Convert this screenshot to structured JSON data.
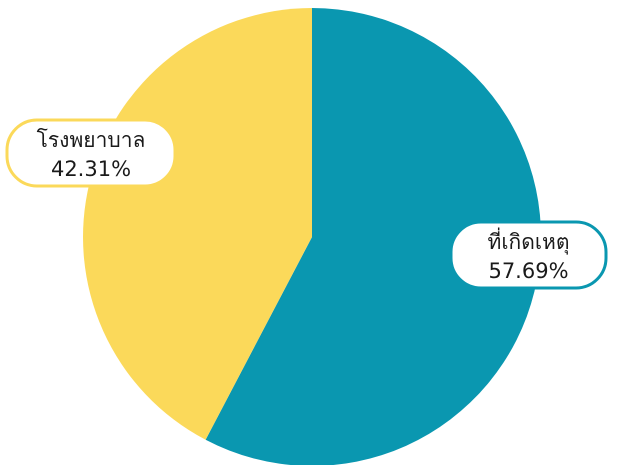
{
  "chart_data": {
    "type": "pie",
    "slices": [
      {
        "label": "ที่เกิดเหตุ",
        "value": 57.69,
        "value_label": "57.69%",
        "color": "#0a97b0"
      },
      {
        "label": "โรงพยาบาล",
        "value": 42.31,
        "value_label": "42.31%",
        "color": "#fbd95a"
      }
    ],
    "start_angle_deg": 0,
    "direction": "clockwise",
    "legend": "none",
    "data_labels": "callouts"
  }
}
